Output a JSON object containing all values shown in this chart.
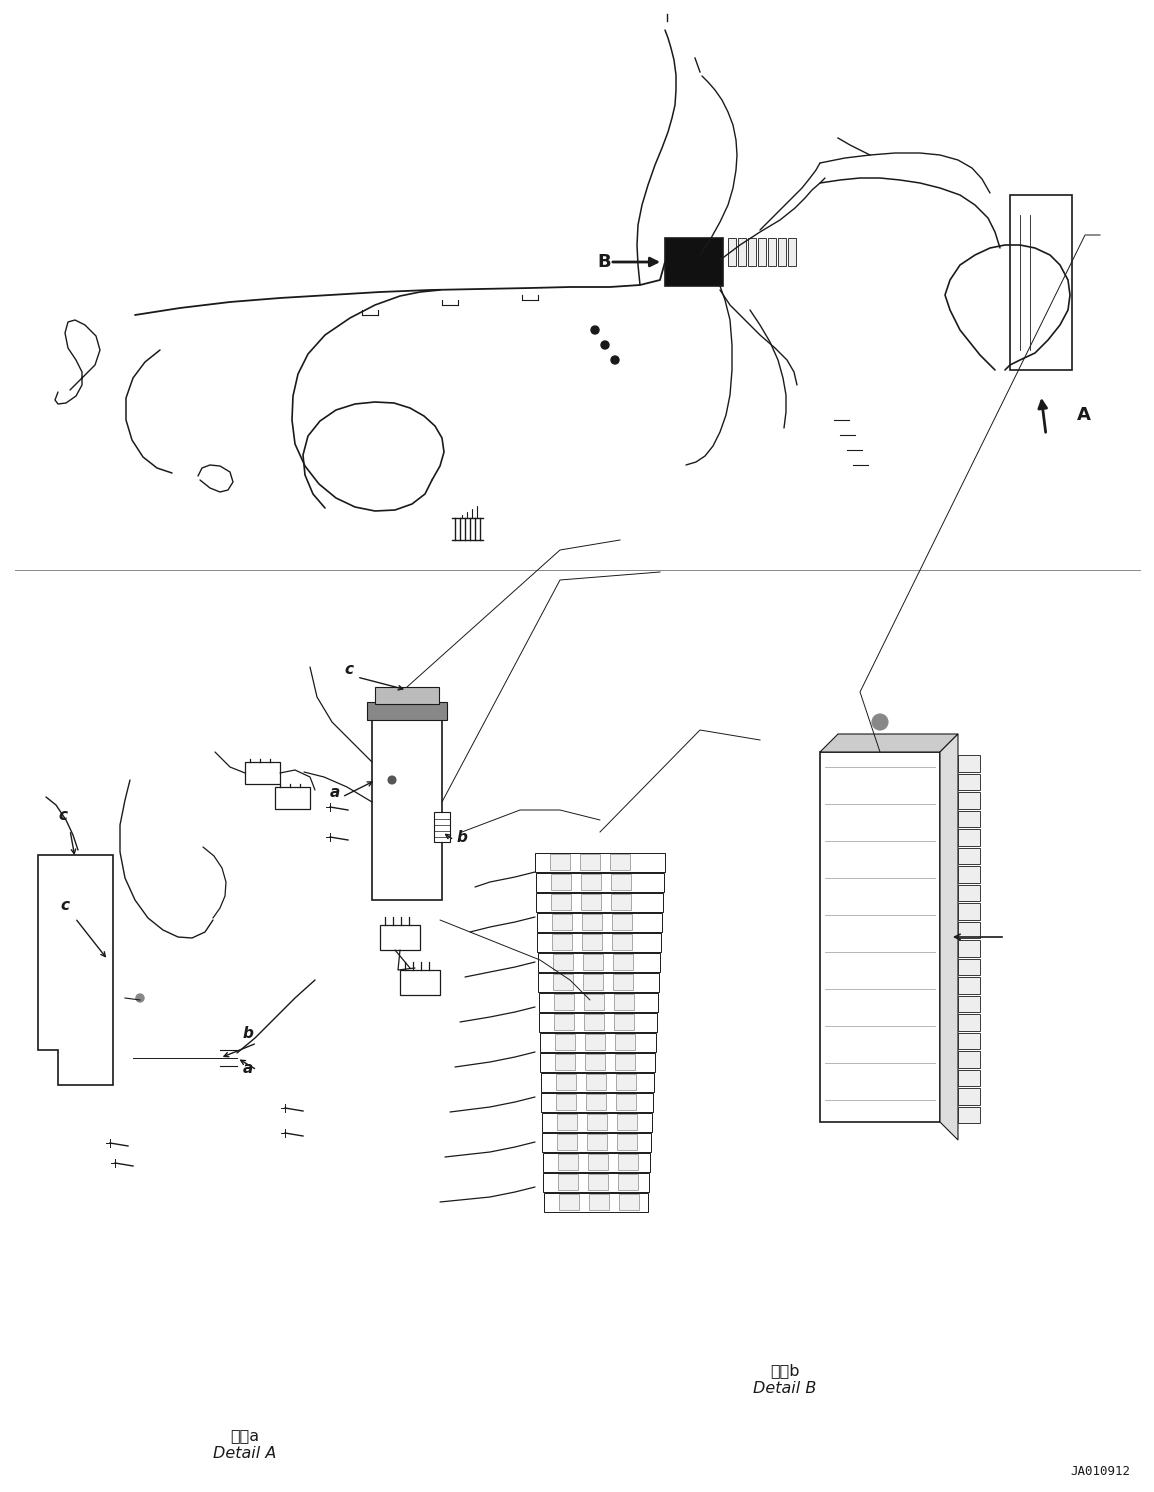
{
  "bg_color": "#ffffff",
  "fig_width": 11.54,
  "fig_height": 14.92,
  "dpi": 100,
  "part_code": "JA010912",
  "detail_a_cn": "详图a",
  "detail_a_en": "Detail A",
  "detail_b_cn": "详图b",
  "detail_b_en": "Detail B",
  "lA": "A",
  "lB": "B",
  "la": "a",
  "lb": "b",
  "lc": "c",
  "line_color": "#1a1a1a",
  "lw": 1.0
}
